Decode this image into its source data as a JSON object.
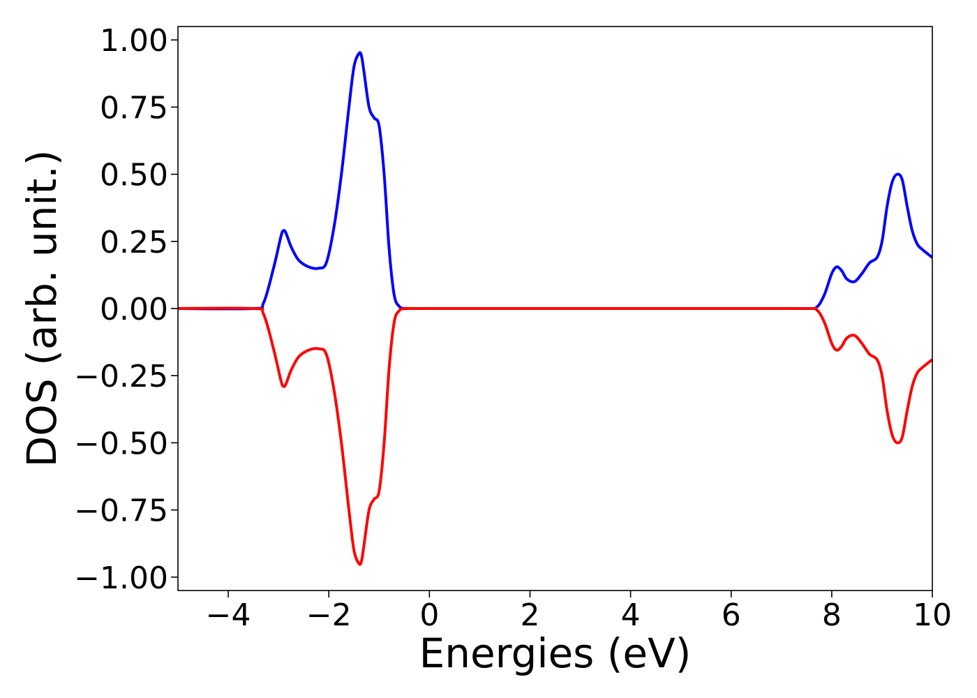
{
  "chart_data": {
    "type": "line",
    "title": "",
    "xlabel": "Energies (eV)",
    "ylabel": "DOS (arb. unit.)",
    "xlim": [
      -5,
      10
    ],
    "ylim": [
      -1.05,
      1.05
    ],
    "grid": false,
    "legend": "none",
    "xticks": [
      {
        "value": -4,
        "label": "−4"
      },
      {
        "value": -2,
        "label": "−2"
      },
      {
        "value": 0,
        "label": "0"
      },
      {
        "value": 2,
        "label": "2"
      },
      {
        "value": 4,
        "label": "4"
      },
      {
        "value": 6,
        "label": "6"
      },
      {
        "value": 8,
        "label": "8"
      },
      {
        "value": 10,
        "label": "10"
      }
    ],
    "yticks": [
      {
        "value": 1.0,
        "label": "1.00"
      },
      {
        "value": 0.75,
        "label": "0.75"
      },
      {
        "value": 0.5,
        "label": "0.50"
      },
      {
        "value": 0.25,
        "label": "0.25"
      },
      {
        "value": 0.0,
        "label": "0.00"
      },
      {
        "value": -0.25,
        "label": "−0.25"
      },
      {
        "value": -0.5,
        "label": "−0.50"
      },
      {
        "value": -0.75,
        "label": "−0.75"
      },
      {
        "value": -1.0,
        "label": "−1.00"
      }
    ],
    "series": [
      {
        "color": "#0000ff",
        "x": [
          -5.0,
          -3.5,
          -3.3,
          -3.1,
          -2.95,
          -2.9,
          -2.85,
          -2.75,
          -2.6,
          -2.4,
          -2.2,
          -2.05,
          -1.9,
          -1.75,
          -1.6,
          -1.5,
          -1.4,
          -1.35,
          -1.3,
          -1.2,
          -1.1,
          -1.0,
          -0.9,
          -0.8,
          -0.7,
          -0.6,
          -0.5,
          -0.4,
          0.0,
          2.0,
          4.0,
          6.0,
          7.5,
          7.7,
          7.85,
          8.0,
          8.1,
          8.2,
          8.3,
          8.45,
          8.6,
          8.75,
          8.9,
          9.0,
          9.1,
          9.2,
          9.3,
          9.4,
          9.5,
          9.6,
          9.7,
          9.8,
          10.0
        ],
        "y": [
          0.0,
          0.0,
          0.02,
          0.15,
          0.27,
          0.29,
          0.28,
          0.23,
          0.18,
          0.155,
          0.15,
          0.17,
          0.3,
          0.5,
          0.75,
          0.9,
          0.95,
          0.94,
          0.88,
          0.75,
          0.71,
          0.68,
          0.5,
          0.22,
          0.05,
          0.008,
          0.0,
          0.0,
          0.0,
          0.0,
          0.0,
          0.0,
          0.0,
          0.005,
          0.05,
          0.13,
          0.155,
          0.14,
          0.11,
          0.1,
          0.13,
          0.17,
          0.19,
          0.25,
          0.38,
          0.47,
          0.5,
          0.48,
          0.38,
          0.29,
          0.24,
          0.22,
          0.19
        ]
      },
      {
        "color": "#ff0000",
        "x": [
          -5.0,
          -3.5,
          -3.3,
          -3.1,
          -2.95,
          -2.9,
          -2.85,
          -2.75,
          -2.6,
          -2.4,
          -2.2,
          -2.05,
          -1.9,
          -1.75,
          -1.6,
          -1.5,
          -1.4,
          -1.35,
          -1.3,
          -1.2,
          -1.1,
          -1.0,
          -0.9,
          -0.8,
          -0.7,
          -0.6,
          -0.5,
          -0.4,
          0.0,
          2.0,
          4.0,
          6.0,
          7.5,
          7.7,
          7.85,
          8.0,
          8.1,
          8.2,
          8.3,
          8.45,
          8.6,
          8.75,
          8.9,
          9.0,
          9.1,
          9.2,
          9.3,
          9.4,
          9.5,
          9.6,
          9.7,
          9.8,
          10.0
        ],
        "y": [
          0.0,
          0.0,
          -0.02,
          -0.15,
          -0.27,
          -0.29,
          -0.28,
          -0.23,
          -0.18,
          -0.155,
          -0.15,
          -0.17,
          -0.3,
          -0.5,
          -0.75,
          -0.9,
          -0.95,
          -0.94,
          -0.88,
          -0.75,
          -0.71,
          -0.68,
          -0.5,
          -0.22,
          -0.05,
          -0.008,
          0.0,
          0.0,
          0.0,
          0.0,
          0.0,
          0.0,
          0.0,
          -0.005,
          -0.05,
          -0.13,
          -0.155,
          -0.14,
          -0.11,
          -0.1,
          -0.13,
          -0.17,
          -0.19,
          -0.25,
          -0.38,
          -0.47,
          -0.5,
          -0.48,
          -0.38,
          -0.29,
          -0.24,
          -0.22,
          -0.19
        ]
      }
    ]
  }
}
